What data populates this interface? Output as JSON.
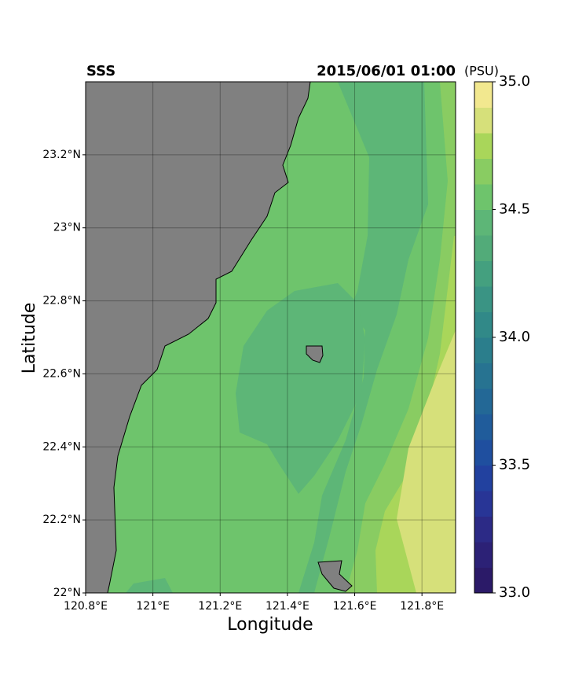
{
  "chart_data": {
    "type": "contour-map",
    "title": "SSS",
    "subtitle": "2015/06/01 01:00",
    "colorbar_label": "(PSU)",
    "xlabel": "Longitude",
    "ylabel": "Latitude",
    "xlim": [
      120.8,
      121.9
    ],
    "ylim": [
      22.0,
      23.4
    ],
    "xticks": [
      {
        "value": 120.8,
        "label": "120.8°E"
      },
      {
        "value": 121.0,
        "label": "121°E"
      },
      {
        "value": 121.2,
        "label": "121.2°E"
      },
      {
        "value": 121.4,
        "label": "121.4°E"
      },
      {
        "value": 121.6,
        "label": "121.6°E"
      },
      {
        "value": 121.8,
        "label": "121.8°E"
      }
    ],
    "yticks": [
      {
        "value": 22.0,
        "label": "22°N"
      },
      {
        "value": 22.2,
        "label": "22.2°N"
      },
      {
        "value": 22.4,
        "label": "22.4°N"
      },
      {
        "value": 22.6,
        "label": "22.6°N"
      },
      {
        "value": 22.8,
        "label": "22.8°N"
      },
      {
        "value": 23.0,
        "label": "23°N"
      },
      {
        "value": 23.2,
        "label": "23.2°N"
      }
    ],
    "grid": true,
    "clim": [
      33.0,
      35.0
    ],
    "cticks": [
      {
        "value": 33.0,
        "label": "33.0"
      },
      33.5,
      {
        "value": 34.0,
        "label": "34.0"
      },
      34.5,
      {
        "value": 35.0,
        "label": "35.0"
      }
    ],
    "colorbar_colors": [
      "#2b1a68",
      "#2c2176",
      "#2c2a86",
      "#283596",
      "#22419f",
      "#1f4f9f",
      "#205c9b",
      "#236896",
      "#277391",
      "#2b7e8c",
      "#318988",
      "#3a9484",
      "#44a07f",
      "#52ab79",
      "#5db677",
      "#6ec46c",
      "#89cc62",
      "#a9d65a",
      "#d6e07a",
      "#f2e88f"
    ]
  }
}
